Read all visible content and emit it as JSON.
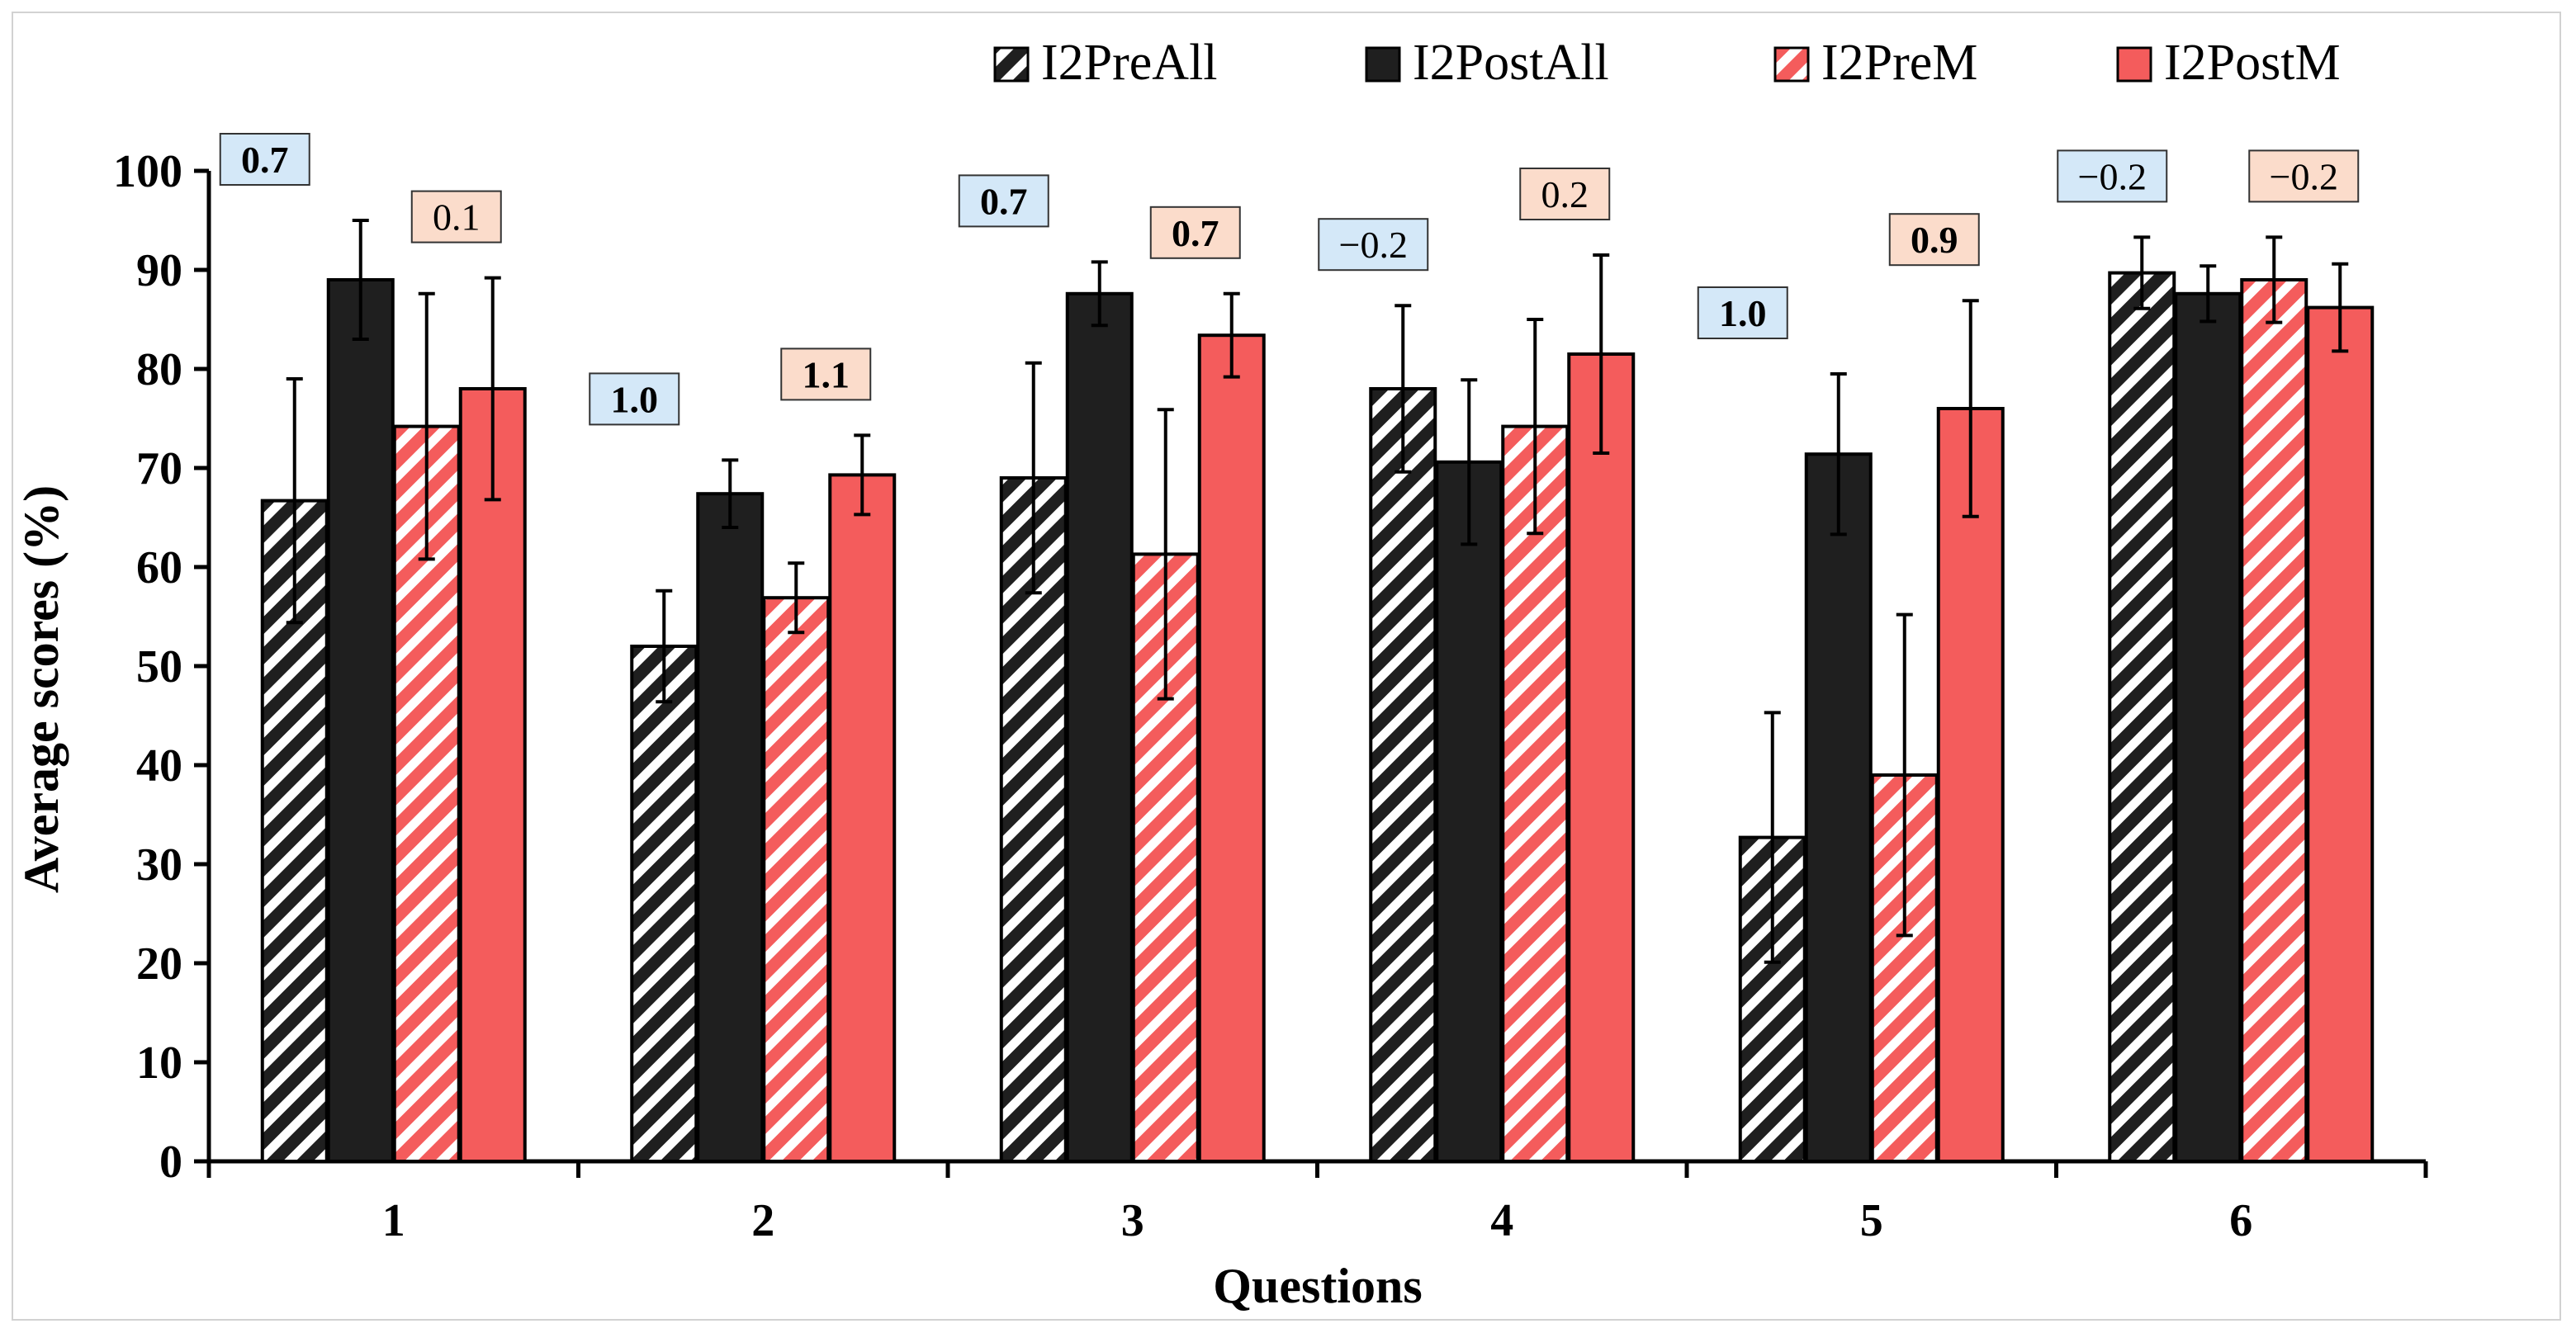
{
  "chart_data": {
    "type": "bar",
    "xlabel": "Questions",
    "ylabel": "Average scores (%)",
    "ylim": [
      0,
      100
    ],
    "yticks": [
      0,
      10,
      20,
      30,
      40,
      50,
      60,
      70,
      80,
      90,
      100
    ],
    "categories": [
      "1",
      "2",
      "3",
      "4",
      "5",
      "6"
    ],
    "series": [
      {
        "name": "I2PreAll",
        "pattern": "hatched",
        "color": "#1f1f1f",
        "values": [
          66.7,
          52.0,
          69.0,
          78.0,
          32.7,
          89.7
        ],
        "errors": [
          12.3,
          5.6,
          11.6,
          8.4,
          12.6,
          3.6
        ]
      },
      {
        "name": "I2PostAll",
        "pattern": "solid",
        "color": "#1f1f1f",
        "values": [
          89.0,
          67.4,
          87.6,
          70.6,
          71.4,
          87.6
        ],
        "errors": [
          6.0,
          3.4,
          3.2,
          8.3,
          8.1,
          2.8
        ]
      },
      {
        "name": "I2PreM",
        "pattern": "hatched",
        "color": "#f45c5c",
        "values": [
          74.2,
          56.9,
          61.3,
          74.2,
          39.0,
          89.0
        ],
        "errors": [
          13.4,
          3.5,
          14.6,
          10.8,
          16.2,
          4.3
        ]
      },
      {
        "name": "I2PostM",
        "pattern": "solid",
        "color": "#f45c5c",
        "values": [
          78.0,
          69.3,
          83.4,
          81.5,
          76.0,
          86.2
        ],
        "errors": [
          11.2,
          4.0,
          4.2,
          10.0,
          10.9,
          4.4
        ]
      }
    ],
    "effect_sizes": [
      {
        "question": "1",
        "all": "0.7",
        "all_bold": true,
        "m": "0.1",
        "m_bold": false
      },
      {
        "question": "2",
        "all": "1.0",
        "all_bold": true,
        "m": "1.1",
        "m_bold": true
      },
      {
        "question": "3",
        "all": "0.7",
        "all_bold": true,
        "m": "0.7",
        "m_bold": true
      },
      {
        "question": "4",
        "all": "−0.2",
        "all_bold": false,
        "m": "0.2",
        "m_bold": false
      },
      {
        "question": "5",
        "all": "1.0",
        "all_bold": true,
        "m": "0.9",
        "m_bold": true
      },
      {
        "question": "6",
        "all": "−0.2",
        "all_bold": false,
        "m": "−0.2",
        "m_bold": false
      }
    ],
    "effect_box_colors": {
      "all": "#d4e8f8",
      "m": "#fbdccb"
    },
    "legend_position": "top-right",
    "grid": false
  }
}
